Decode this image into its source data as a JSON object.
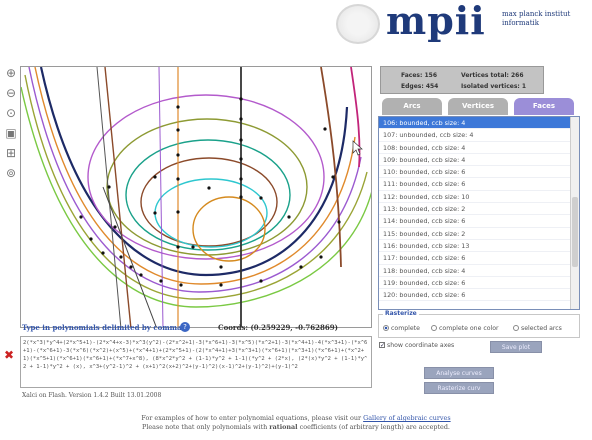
{
  "logo": {
    "word": "mpii",
    "line1": "max planck institut",
    "line2": "informatik"
  },
  "toolbar": {
    "icons": [
      "zoom-in-icon",
      "zoom-out-icon",
      "zoom-fit-icon",
      "zoom-reset-icon",
      "zoom-region-icon",
      "rotate-icon"
    ]
  },
  "stats": {
    "faces": "Faces: 156",
    "vertices_total": "Vertices total: 266",
    "edges": "Edges: 454",
    "isolated_vertices": "Isolated vertices: 1"
  },
  "tabs": [
    {
      "label": "Arcs",
      "active": false
    },
    {
      "label": "Vertices",
      "active": false
    },
    {
      "label": "Faces",
      "active": true
    }
  ],
  "faces": [
    {
      "label": "106: bounded, ccb size: 4",
      "selected": true
    },
    {
      "label": "107: unbounded, ccb size: 4",
      "selected": false
    },
    {
      "label": "108: bounded, ccb size: 4",
      "selected": false
    },
    {
      "label": "109: bounded, ccb size: 4",
      "selected": false
    },
    {
      "label": "110: bounded, ccb size: 6",
      "selected": false
    },
    {
      "label": "111: bounded, ccb size: 6",
      "selected": false
    },
    {
      "label": "112: bounded, ccb size: 10",
      "selected": false
    },
    {
      "label": "113: bounded, ccb size: 2",
      "selected": false
    },
    {
      "label": "114: bounded, ccb size: 6",
      "selected": false
    },
    {
      "label": "115: bounded, ccb size: 2",
      "selected": false
    },
    {
      "label": "116: bounded, ccb size: 13",
      "selected": false
    },
    {
      "label": "117: bounded, ccb size: 6",
      "selected": false
    },
    {
      "label": "118: bounded, ccb size: 4",
      "selected": false
    },
    {
      "label": "119: bounded, ccb size: 6",
      "selected": false
    },
    {
      "label": "120: bounded, ccb size: 6",
      "selected": false
    }
  ],
  "rasterize": {
    "legend": "Rasterize",
    "options": [
      {
        "label": "complete",
        "selected": true
      },
      {
        "label": "complete one color",
        "selected": false
      },
      {
        "label": "selected arcs",
        "selected": false
      }
    ]
  },
  "show_axes": {
    "label": "show coordinate axes",
    "checked": true
  },
  "buttons": {
    "save_plot": "Save plot",
    "analyse": "Analyse curves",
    "rasterize": "Rasterize curv"
  },
  "input": {
    "label": "Type in polynomials delimited by commas:",
    "cursor_label": "Coords:",
    "cursor_coords": "(0.259229, -0.762869)",
    "value": "2(*x^3)*y^4+(2*x^5+1)-(2*x^4+x-3)*x^3(y^2)-(2*x^2+1)-3(*x^6+1)-3(*x^5)(*x^2+1)-3(*x^4+1)-4(*x^3+1)-(*x^6+1)-(*x^6+1)-3(*x^6)(*x^2)+(x^5)+(*x^4+1)+(2*x^5+1)-(2(*x^4+1)+3(*x^3+1)(*x^6+1)(*x^3+1)(*x^6+1)+(*x^2+1)(*x^5+1)(*x^6+1)(*x^6+1)+(*x^7+x^8), (8*x^2*y^2 + (1-1)*y^2 + 1-1)(*y^2 + (2*x), (2*(x)*y^2 + (1-1)*y^2 + 1-1)*y^2 + (x), x^3+(y^2-1)^2 + (x+1)^2(x+2)^2+(y-1)^2)(x-1)^2+(y-1)^2)+(y-1)^2"
  },
  "version": "Xalci on Flash. Version 1.4.2 Built 13.01.2008",
  "footer": {
    "line1_prefix": "For examples of how to enter polynomial equations, please visit our",
    "line1_link": "Gallery of algebraic curves",
    "line2_prefix": "Please note that only polynomials with",
    "line2_bold": "rational",
    "line2_suffix": "coefficients (of arbitrary length) are accepted."
  },
  "colors": {
    "accent": "#3355aa",
    "tab_active": "#9b8ed8",
    "selection": "#3d78d8",
    "logo": "#1f3a7a"
  }
}
